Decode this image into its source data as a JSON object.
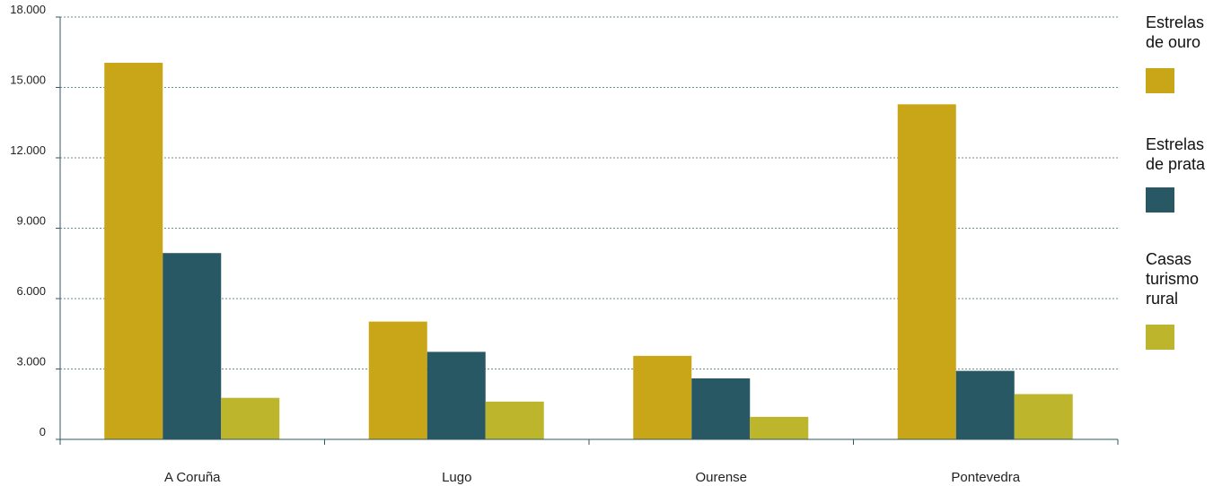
{
  "chart_data": {
    "type": "bar",
    "categories": [
      "A Coruña",
      "Lugo",
      "Ourense",
      "Pontevedra"
    ],
    "series": [
      {
        "name": "Estrelas\nde ouro",
        "color": "#C9A618",
        "values": [
          16050,
          5020,
          3560,
          14280
        ]
      },
      {
        "name": "Estrelas\nde prata",
        "color": "#275864",
        "values": [
          7940,
          3730,
          2600,
          2920
        ]
      },
      {
        "name": "Casas\nturismo\nrural",
        "color": "#BDB52C",
        "values": [
          1770,
          1610,
          960,
          1930
        ]
      }
    ],
    "ylim": [
      0,
      18000
    ],
    "yticks": [
      0,
      3000,
      6000,
      9000,
      12000,
      15000,
      18000
    ],
    "ytick_labels": [
      "0",
      "3.000",
      "6.000",
      "9.000",
      "12.000",
      "15.000",
      "18.000"
    ],
    "grid": true,
    "legend_position": "right"
  }
}
